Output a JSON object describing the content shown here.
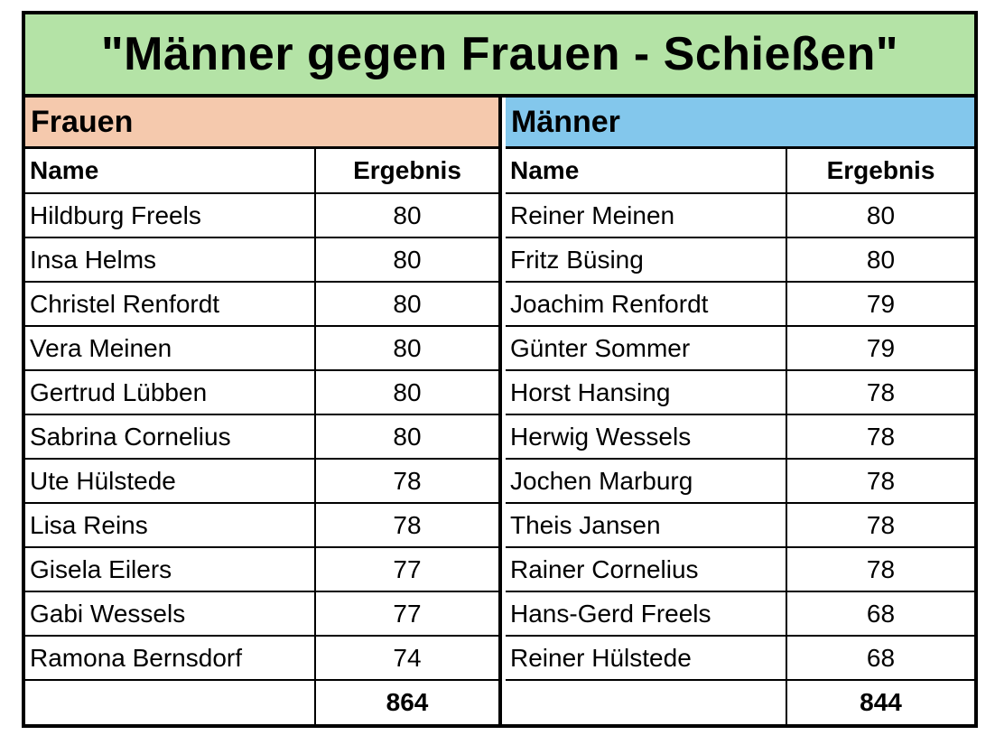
{
  "title": "\"Männer gegen Frauen - Schießen\"",
  "colors": {
    "title_bg": "#b4e3a6",
    "frauen_bg": "#f5c9ad",
    "maenner_bg": "#83c7ec"
  },
  "frauen": {
    "heading": "Frauen",
    "col_name": "Name",
    "col_result": "Ergebnis",
    "rows": [
      {
        "name": "Hildburg Freels",
        "score": "80"
      },
      {
        "name": "Insa Helms",
        "score": "80"
      },
      {
        "name": "Christel Renfordt",
        "score": "80"
      },
      {
        "name": "Vera Meinen",
        "score": "80"
      },
      {
        "name": "Gertrud Lübben",
        "score": "80"
      },
      {
        "name": "Sabrina Cornelius",
        "score": "80"
      },
      {
        "name": "Ute Hülstede",
        "score": "78"
      },
      {
        "name": "Lisa Reins",
        "score": "78"
      },
      {
        "name": "Gisela Eilers",
        "score": "77"
      },
      {
        "name": "Gabi Wessels",
        "score": "77"
      },
      {
        "name": "Ramona Bernsdorf",
        "score": "74"
      }
    ],
    "total": "864"
  },
  "maenner": {
    "heading": "Männer",
    "col_name": "Name",
    "col_result": "Ergebnis",
    "rows": [
      {
        "name": "Reiner Meinen",
        "score": "80"
      },
      {
        "name": "Fritz Büsing",
        "score": "80"
      },
      {
        "name": "Joachim Renfordt",
        "score": "79"
      },
      {
        "name": "Günter Sommer",
        "score": "79"
      },
      {
        "name": "Horst Hansing",
        "score": "78"
      },
      {
        "name": "Herwig Wessels",
        "score": "78"
      },
      {
        "name": "Jochen Marburg",
        "score": "78"
      },
      {
        "name": "Theis Jansen",
        "score": "78"
      },
      {
        "name": "Rainer Cornelius",
        "score": "78"
      },
      {
        "name": "Hans-Gerd Freels",
        "score": "68"
      },
      {
        "name": "Reiner Hülstede",
        "score": "68"
      }
    ],
    "total": "844"
  }
}
